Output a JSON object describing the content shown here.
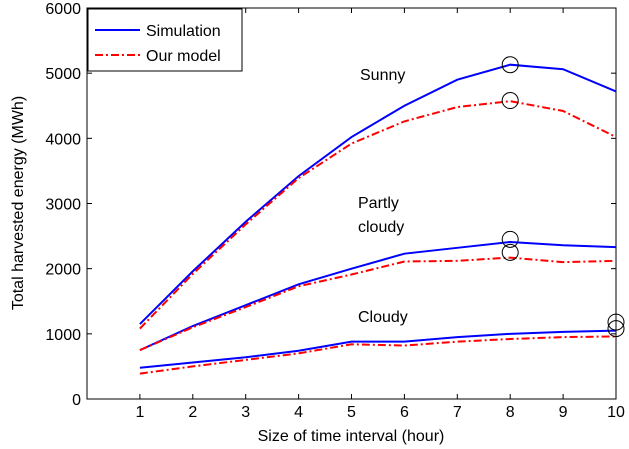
{
  "chart_data": {
    "type": "line",
    "xlabel": "Size of time interval (hour)",
    "ylabel": "Total harvested energy (MWh)",
    "x": [
      1,
      2,
      3,
      4,
      5,
      6,
      7,
      8,
      9,
      10
    ],
    "series": [
      {
        "name": "Simulation",
        "color": "#0000ff",
        "dash": "solid",
        "values": [
          [
            1150,
            1960,
            2720,
            3420,
            4020,
            4500,
            4900,
            5130,
            5060,
            4720
          ],
          [
            750,
            1120,
            1440,
            1760,
            2000,
            2230,
            2320,
            2410,
            2360,
            2330
          ],
          [
            480,
            560,
            640,
            740,
            880,
            880,
            950,
            1000,
            1030,
            1050
          ]
        ]
      },
      {
        "name": "Our model",
        "color": "#ff0000",
        "dash": "dashdot",
        "values": [
          [
            1080,
            1920,
            2680,
            3390,
            3920,
            4260,
            4480,
            4570,
            4420,
            4020
          ],
          [
            750,
            1100,
            1410,
            1730,
            1910,
            2110,
            2120,
            2170,
            2100,
            2120
          ],
          [
            390,
            500,
            600,
            700,
            840,
            820,
            880,
            920,
            950,
            960
          ]
        ]
      }
    ],
    "annotations": [
      [
        "Sunny"
      ],
      [
        "Partly",
        "cloudy"
      ],
      [
        "Cloudy"
      ]
    ],
    "markers": [
      {
        "x": 8,
        "y": 5130
      },
      {
        "x": 8,
        "y": 4580
      },
      {
        "x": 8,
        "y": 2450
      },
      {
        "x": 8,
        "y": 2250
      },
      {
        "x": 10,
        "y": 1180
      },
      {
        "x": 10,
        "y": 1080
      }
    ],
    "xlim": [
      0,
      10
    ],
    "xticks": [
      1,
      2,
      3,
      4,
      5,
      6,
      7,
      8,
      9,
      10
    ],
    "ylim": [
      0,
      6000
    ],
    "yticks": [
      0,
      1000,
      2000,
      3000,
      4000,
      5000,
      6000
    ],
    "grid": false,
    "legend": "upper left"
  }
}
